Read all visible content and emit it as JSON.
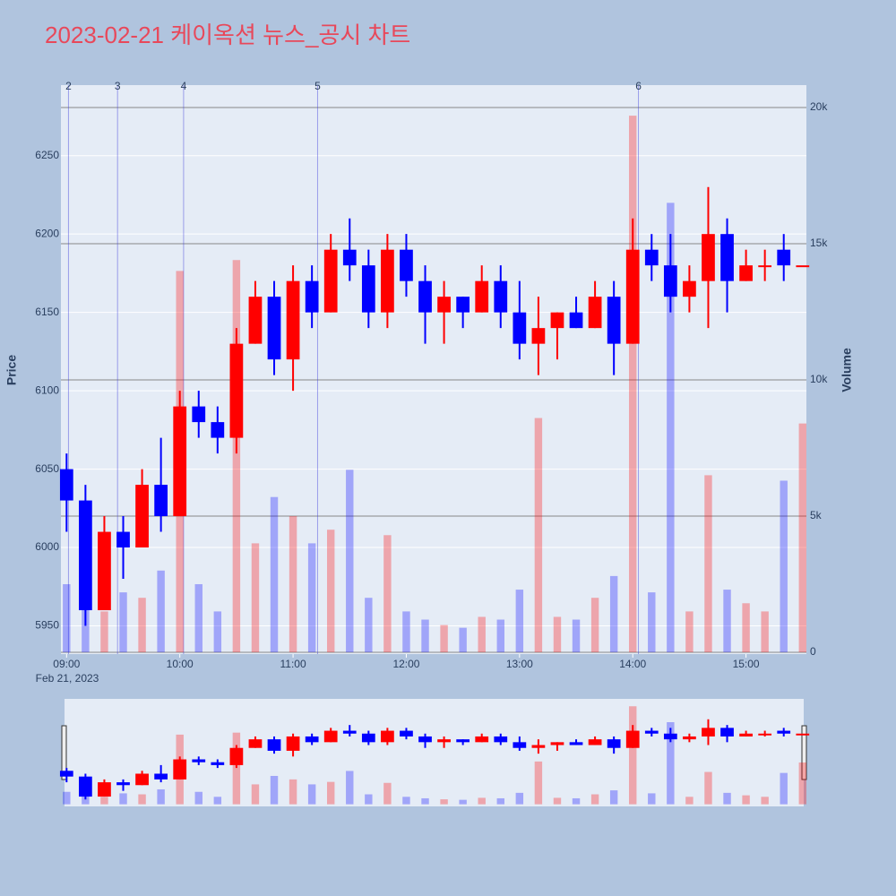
{
  "chart_data": {
    "type": "candlestick",
    "title": "2023-02-21 케이옥션 뉴스_공시 차트",
    "y_label": "Price",
    "y2_label": "Volume",
    "x_date_label": "Feb 21, 2023",
    "x": [
      "2023-02-21 09:00",
      "2023-02-21 09:10",
      "2023-02-21 09:20",
      "2023-02-21 09:30",
      "2023-02-21 09:40",
      "2023-02-21 09:50",
      "2023-02-21 10:00",
      "2023-02-21 10:10",
      "2023-02-21 10:20",
      "2023-02-21 10:30",
      "2023-02-21 10:40",
      "2023-02-21 10:50",
      "2023-02-21 11:00",
      "2023-02-21 11:10",
      "2023-02-21 11:20",
      "2023-02-21 11:30",
      "2023-02-21 11:40",
      "2023-02-21 11:50",
      "2023-02-21 12:00",
      "2023-02-21 12:10",
      "2023-02-21 12:20",
      "2023-02-21 12:30",
      "2023-02-21 12:40",
      "2023-02-21 12:50",
      "2023-02-21 13:00",
      "2023-02-21 13:10",
      "2023-02-21 13:20",
      "2023-02-21 13:30",
      "2023-02-21 13:40",
      "2023-02-21 13:50",
      "2023-02-21 14:00",
      "2023-02-21 14:10",
      "2023-02-21 14:20",
      "2023-02-21 14:30",
      "2023-02-21 14:40",
      "2023-02-21 14:50",
      "2023-02-21 15:00",
      "2023-02-21 15:10",
      "2023-02-21 15:20",
      "2023-02-21 15:30"
    ],
    "open": [
      6050,
      6030,
      5960,
      6010,
      6000,
      6040,
      6020,
      6090,
      6080,
      6070,
      6130,
      6160,
      6120,
      6170,
      6150,
      6190,
      6180,
      6150,
      6190,
      6170,
      6150,
      6160,
      6150,
      6170,
      6150,
      6130,
      6140,
      6150,
      6140,
      6160,
      6130,
      6190,
      6180,
      6160,
      6170,
      6200,
      6170,
      6180,
      6190,
      6180
    ],
    "high": [
      6060,
      6040,
      6020,
      6020,
      6050,
      6070,
      6100,
      6100,
      6090,
      6140,
      6170,
      6170,
      6180,
      6180,
      6200,
      6210,
      6190,
      6200,
      6200,
      6180,
      6170,
      6160,
      6180,
      6180,
      6170,
      6160,
      6150,
      6160,
      6170,
      6170,
      6210,
      6200,
      6200,
      6180,
      6230,
      6210,
      6190,
      6190,
      6200,
      6180
    ],
    "low": [
      6010,
      5950,
      5960,
      5980,
      6000,
      6010,
      6020,
      6070,
      6060,
      6060,
      6130,
      6110,
      6100,
      6140,
      6150,
      6170,
      6140,
      6140,
      6160,
      6130,
      6130,
      6140,
      6150,
      6140,
      6120,
      6110,
      6120,
      6140,
      6140,
      6110,
      6130,
      6170,
      6150,
      6150,
      6140,
      6150,
      6170,
      6170,
      6170,
      6180
    ],
    "close": [
      6030,
      5960,
      6010,
      6000,
      6040,
      6020,
      6090,
      6080,
      6070,
      6130,
      6160,
      6120,
      6170,
      6150,
      6190,
      6180,
      6150,
      6190,
      6170,
      6150,
      6160,
      6150,
      6170,
      6150,
      6130,
      6140,
      6150,
      6140,
      6160,
      6130,
      6190,
      6180,
      6160,
      6170,
      6200,
      6170,
      6180,
      6180,
      6180,
      6180
    ],
    "volume": [
      2500,
      1800,
      1500,
      2200,
      2000,
      3000,
      14000,
      2500,
      1500,
      14400,
      4000,
      5700,
      5000,
      4000,
      4500,
      6700,
      2000,
      4300,
      1500,
      1200,
      1000,
      900,
      1300,
      1200,
      2300,
      8600,
      1300,
      1200,
      2000,
      2800,
      19700,
      2200,
      16500,
      1500,
      6500,
      2300,
      1800,
      1500,
      6300,
      8400
    ],
    "up_color": "#ff0000",
    "down_color": "#0000ff",
    "up_volume_color": "rgba(255,0,0,0.3)",
    "down_volume_color": "rgba(0,0,255,0.3)",
    "annotations": [
      {
        "x": "2023-02-21 09:01",
        "label": "2"
      },
      {
        "x": "2023-02-21 09:27",
        "label": "3"
      },
      {
        "x": "2023-02-21 10:02",
        "label": "4"
      },
      {
        "x": "2023-02-21 11:13",
        "label": "5"
      },
      {
        "x": "2023-02-21 14:03",
        "label": "6"
      }
    ],
    "xlim": [
      "2023-02-21 08:57",
      "2023-02-21 15:32"
    ],
    "xticks": [
      {
        "value": "2023-02-21 09:00",
        "label": "09:00"
      },
      {
        "value": "2023-02-21 10:00",
        "label": "10:00"
      },
      {
        "value": "2023-02-21 11:00",
        "label": "11:00"
      },
      {
        "value": "2023-02-21 12:00",
        "label": "12:00"
      },
      {
        "value": "2023-02-21 13:00",
        "label": "13:00"
      },
      {
        "value": "2023-02-21 14:00",
        "label": "14:00"
      },
      {
        "value": "2023-02-21 15:00",
        "label": "15:00"
      }
    ],
    "ylim": [
      5932,
      6295
    ],
    "yticks": [
      5950,
      6000,
      6050,
      6100,
      6150,
      6200,
      6250
    ],
    "y2lim": [
      -66,
      20822
    ],
    "y2ticks": [
      0,
      {
        "value": 5000,
        "label": "5k"
      },
      {
        "value": 10000,
        "label": "10k"
      },
      {
        "value": 15000,
        "label": "15k"
      },
      {
        "value": 20000,
        "label": "20k"
      }
    ],
    "grid": true
  }
}
